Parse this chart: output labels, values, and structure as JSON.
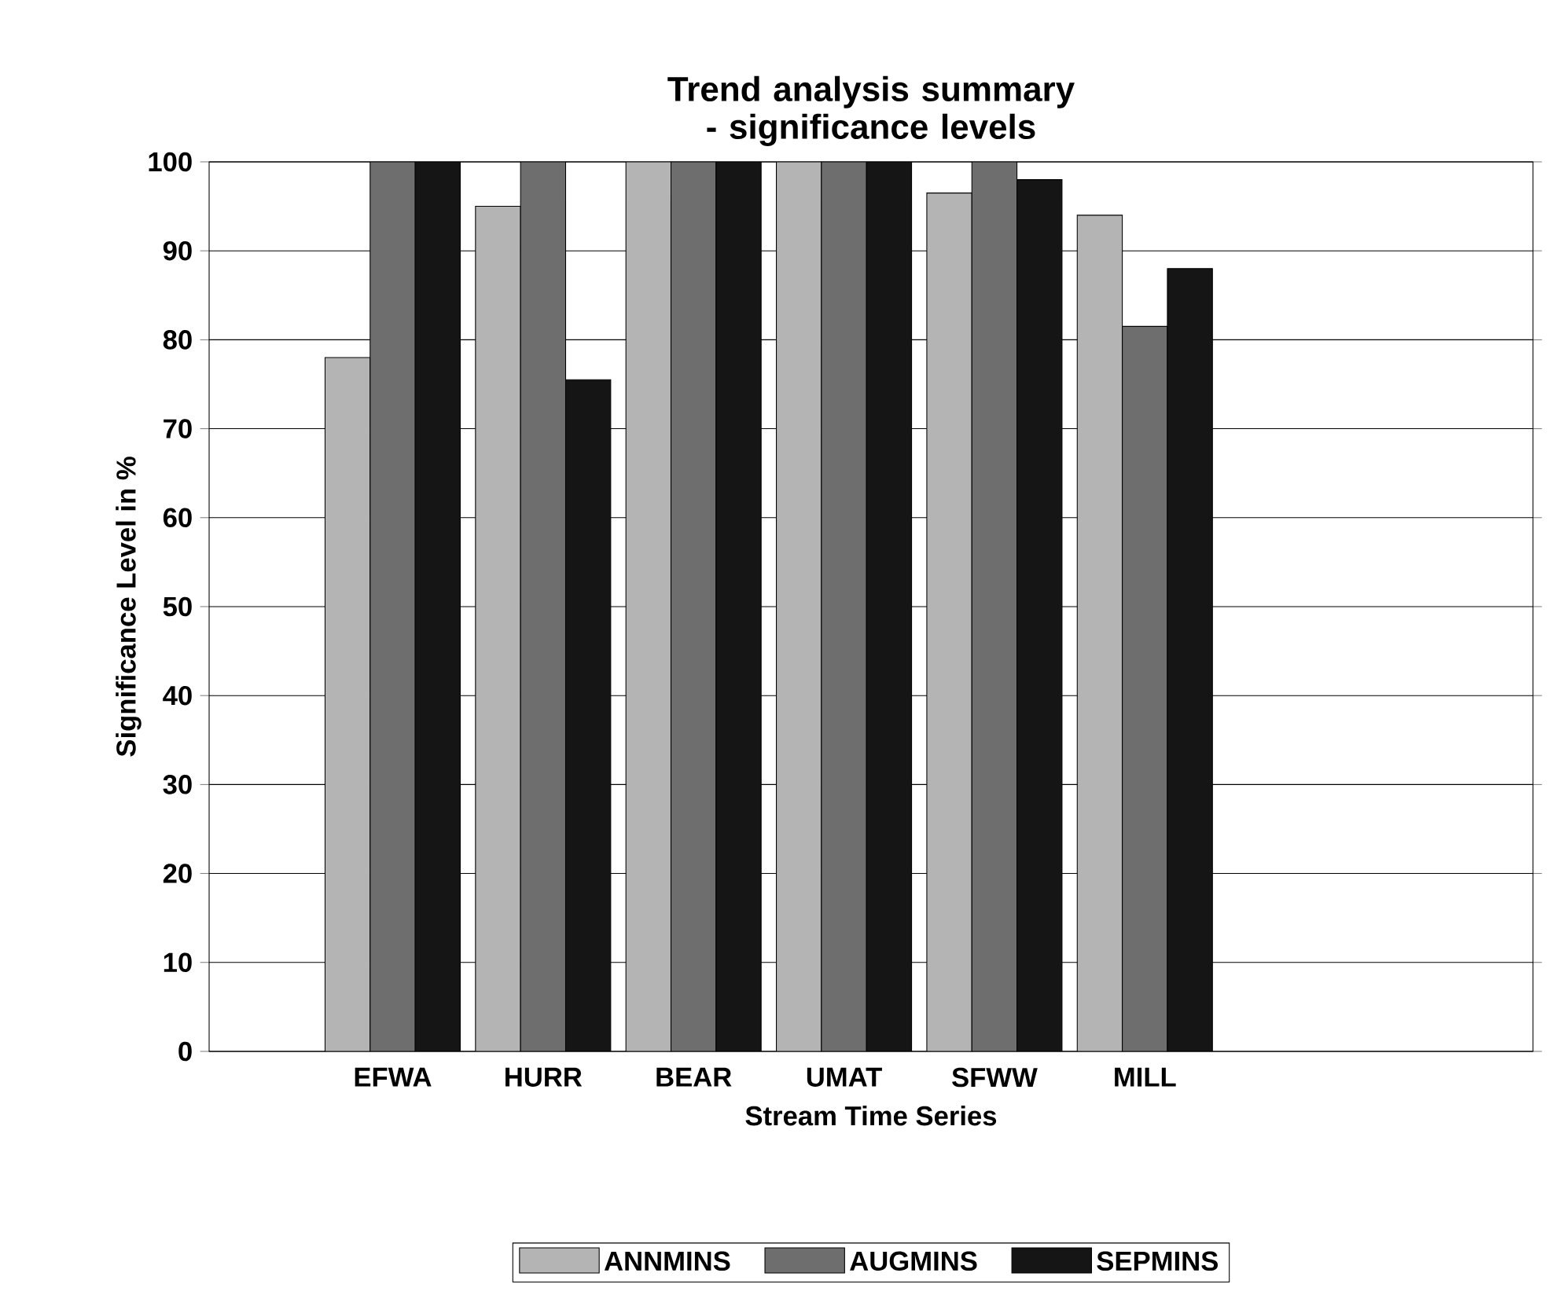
{
  "chart_data": {
    "type": "bar",
    "title": "Trend analysis summary - significance levels",
    "xlabel": "Stream Time Series",
    "ylabel": "Significance Level in %",
    "categories": [
      "EFWA",
      "HURR",
      "BEAR",
      "UMAT",
      "SFWW",
      "MILL"
    ],
    "series": [
      {
        "name": "ANNMINS",
        "color": "#b4b4b4",
        "values": [
          78,
          95,
          100,
          100,
          96.5,
          94
        ]
      },
      {
        "name": "AUGMINS",
        "color": "#6e6e6e",
        "values": [
          100,
          100,
          100,
          100,
          100,
          81.5
        ]
      },
      {
        "name": "SEPMINS",
        "color": "#151515",
        "values": [
          100,
          75.5,
          100,
          100,
          98,
          88
        ]
      }
    ],
    "ylim": [
      0,
      100
    ],
    "yticks": [
      0,
      10,
      20,
      30,
      40,
      50,
      60,
      70,
      80,
      90,
      100
    ],
    "grid": "y",
    "legend": "bottom"
  }
}
